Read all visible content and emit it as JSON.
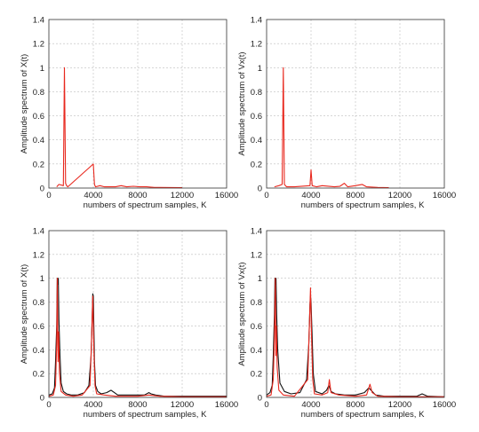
{
  "chart_data": [
    {
      "type": "line",
      "title": "",
      "xlabel": "numbers of spectrum samples, K",
      "ylabel": "Amplitude spectrum of X(t)",
      "xlim": [
        0,
        16000
      ],
      "ylim": [
        0,
        1.4
      ],
      "xticks": [
        "0",
        "4000",
        "8000",
        "12000",
        "16000"
      ],
      "yticks": [
        "0",
        "0.2",
        "0.4",
        "0.6",
        "0.8",
        "1",
        "1.2",
        "1.4"
      ],
      "grid": true,
      "series": [
        {
          "color": "#e8281e",
          "x": [
            700,
            900,
            1300,
            1400,
            1500,
            1600,
            1700,
            4000,
            4100,
            4200,
            4600,
            5000,
            6000,
            6500,
            7000,
            7600,
            8200,
            8800,
            9500,
            10000,
            12000
          ],
          "values": [
            0.01,
            0.03,
            0.02,
            1.0,
            0.04,
            0.02,
            0.01,
            0.2,
            0.03,
            0.01,
            0.02,
            0.01,
            0.01,
            0.02,
            0.01,
            0.015,
            0.01,
            0.01,
            0.005,
            0.005,
            0.003
          ]
        }
      ]
    },
    {
      "type": "line",
      "title": "",
      "xlabel": "numbers of spectrum samples, K",
      "ylabel": "Amplitude spectrum of Vx(t)",
      "xlim": [
        0,
        16000
      ],
      "ylim": [
        0,
        1.4
      ],
      "xticks": [
        "0",
        "4000",
        "8000",
        "12000",
        "16000"
      ],
      "yticks": [
        "0",
        "0.2",
        "0.4",
        "0.6",
        "0.8",
        "1",
        "1.2",
        "1.4"
      ],
      "grid": true,
      "series": [
        {
          "color": "#e8281e",
          "x": [
            700,
            1100,
            1400,
            1500,
            1600,
            1800,
            2500,
            3900,
            4000,
            4100,
            4500,
            5000,
            6100,
            6600,
            7000,
            7300,
            8000,
            8600,
            9000,
            10000,
            11000
          ],
          "values": [
            0.01,
            0.02,
            0.03,
            1.0,
            0.03,
            0.01,
            0.01,
            0.02,
            0.15,
            0.02,
            0.01,
            0.02,
            0.01,
            0.015,
            0.04,
            0.01,
            0.02,
            0.03,
            0.01,
            0.005,
            0.004
          ]
        }
      ]
    },
    {
      "type": "line",
      "title": "",
      "xlabel": "numbers of spectrum samples, K",
      "ylabel": "Amplitude spectrum of X(t)",
      "xlim": [
        0,
        16000
      ],
      "ylim": [
        0,
        1.4
      ],
      "xticks": [
        "0",
        "4000",
        "8000",
        "12000",
        "16000"
      ],
      "yticks": [
        "0",
        "0.2",
        "0.4",
        "0.6",
        "0.8",
        "1",
        "1.2",
        "1.4"
      ],
      "grid": true,
      "series": [
        {
          "color": "#111111",
          "x": [
            0,
            300,
            500,
            600,
            700,
            750,
            800,
            850,
            900,
            1000,
            1100,
            1300,
            1600,
            2000,
            2600,
            3200,
            3600,
            3800,
            3900,
            3950,
            4000,
            4050,
            4100,
            4200,
            4400,
            4700,
            5200,
            5600,
            6200,
            7000,
            8000,
            8600,
            9000,
            9200,
            9600,
            10400,
            12000,
            14000,
            16000
          ],
          "values": [
            0.02,
            0.03,
            0.08,
            0.3,
            0.6,
            1.0,
            0.95,
            1.0,
            0.65,
            0.35,
            0.12,
            0.05,
            0.03,
            0.02,
            0.02,
            0.04,
            0.1,
            0.35,
            0.7,
            0.87,
            0.85,
            0.6,
            0.3,
            0.1,
            0.05,
            0.03,
            0.04,
            0.06,
            0.02,
            0.02,
            0.02,
            0.02,
            0.04,
            0.03,
            0.02,
            0.01,
            0.01,
            0.01,
            0.01
          ]
        },
        {
          "color": "#e8281e",
          "x": [
            0,
            400,
            600,
            700,
            760,
            820,
            880,
            950,
            1100,
            1500,
            2200,
            3000,
            3700,
            3850,
            3950,
            4050,
            4150,
            4300,
            5000,
            6000,
            8000,
            9000,
            10000,
            12000,
            16000
          ],
          "values": [
            0.01,
            0.02,
            0.1,
            0.45,
            1.0,
            0.3,
            0.55,
            0.2,
            0.05,
            0.02,
            0.01,
            0.02,
            0.1,
            0.5,
            0.85,
            0.4,
            0.1,
            0.03,
            0.02,
            0.01,
            0.01,
            0.02,
            0.01,
            0.005,
            0.005
          ]
        }
      ]
    },
    {
      "type": "line",
      "title": "",
      "xlabel": "numbers of spectrum samples, K",
      "ylabel": "Amplitude spectrum of Vx(t)",
      "xlim": [
        0,
        16000
      ],
      "ylim": [
        0,
        1.4
      ],
      "xticks": [
        "0",
        "4000",
        "8000",
        "12000",
        "16000"
      ],
      "yticks": [
        "0",
        "0.2",
        "0.4",
        "0.6",
        "0.8",
        "1",
        "1.2",
        "1.4"
      ],
      "grid": true,
      "series": [
        {
          "color": "#111111",
          "x": [
            0,
            300,
            500,
            600,
            700,
            750,
            800,
            850,
            900,
            1000,
            1200,
            1600,
            2200,
            3000,
            3600,
            3800,
            3900,
            3950,
            4000,
            4100,
            4200,
            4400,
            5000,
            5400,
            5600,
            5800,
            6200,
            7000,
            8000,
            8800,
            9200,
            9400,
            9800,
            10600,
            12000,
            13500,
            14000,
            14500,
            16000
          ],
          "values": [
            0.02,
            0.04,
            0.1,
            0.35,
            0.7,
            1.0,
            0.95,
            1.0,
            0.7,
            0.4,
            0.12,
            0.05,
            0.03,
            0.04,
            0.15,
            0.45,
            0.78,
            0.85,
            0.8,
            0.5,
            0.2,
            0.05,
            0.03,
            0.06,
            0.1,
            0.05,
            0.03,
            0.02,
            0.02,
            0.04,
            0.08,
            0.06,
            0.02,
            0.01,
            0.01,
            0.01,
            0.03,
            0.01,
            0.005
          ]
        },
        {
          "color": "#e8281e",
          "x": [
            0,
            400,
            600,
            700,
            780,
            830,
            880,
            950,
            1100,
            1500,
            2500,
            3700,
            3850,
            3950,
            4050,
            4150,
            4300,
            5000,
            5500,
            5650,
            5800,
            6500,
            8000,
            9000,
            9300,
            9500,
            10000,
            12000,
            14000,
            16000
          ],
          "values": [
            0.01,
            0.02,
            0.15,
            0.5,
            1.0,
            0.35,
            0.6,
            0.25,
            0.06,
            0.02,
            0.01,
            0.15,
            0.6,
            0.92,
            0.5,
            0.15,
            0.03,
            0.02,
            0.04,
            0.15,
            0.04,
            0.02,
            0.01,
            0.02,
            0.11,
            0.04,
            0.01,
            0.005,
            0.005,
            0.005
          ]
        }
      ]
    }
  ]
}
